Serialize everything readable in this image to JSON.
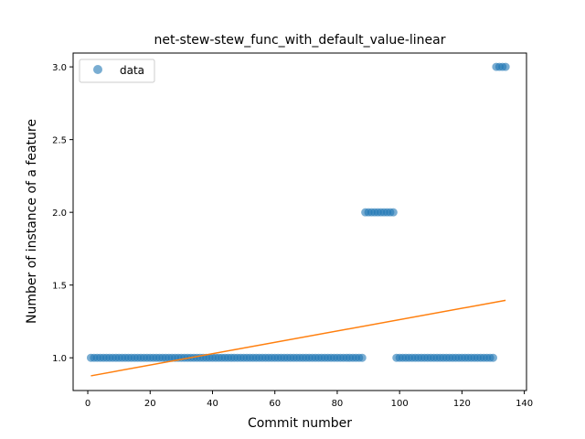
{
  "chart_data": {
    "type": "scatter",
    "title": "net-stew-stew_func_with_default_value-linear",
    "xlabel": "Commit number",
    "ylabel": "Number of instance of a feature",
    "xlim": [
      -4.7,
      140.7
    ],
    "ylim": [
      0.775,
      3.095
    ],
    "xticks": [
      0,
      20,
      40,
      60,
      80,
      100,
      120,
      140
    ],
    "yticks": [
      1.0,
      1.5,
      2.0,
      2.5,
      3.0
    ],
    "xtick_labels": [
      "0",
      "20",
      "40",
      "60",
      "80",
      "100",
      "120",
      "140"
    ],
    "ytick_labels": [
      "1.0",
      "1.5",
      "2.0",
      "2.5",
      "3.0"
    ],
    "grid": false,
    "legend": {
      "placement": "top-left",
      "entries": [
        "data"
      ]
    },
    "series": [
      {
        "name": "data",
        "kind": "scatter",
        "color": "#1f77b4",
        "segments": [
          {
            "x_from": 1,
            "x_to": 88,
            "y": 1.0
          },
          {
            "x_from": 89,
            "x_to": 98,
            "y": 2.0
          },
          {
            "x_from": 99,
            "x_to": 130,
            "y": 1.0
          },
          {
            "x_from": 131,
            "x_to": 134,
            "y": 3.0
          }
        ]
      },
      {
        "kind": "line",
        "color": "#ff7f0e",
        "x": [
          1,
          134
        ],
        "y": [
          0.876,
          1.395
        ]
      }
    ]
  }
}
